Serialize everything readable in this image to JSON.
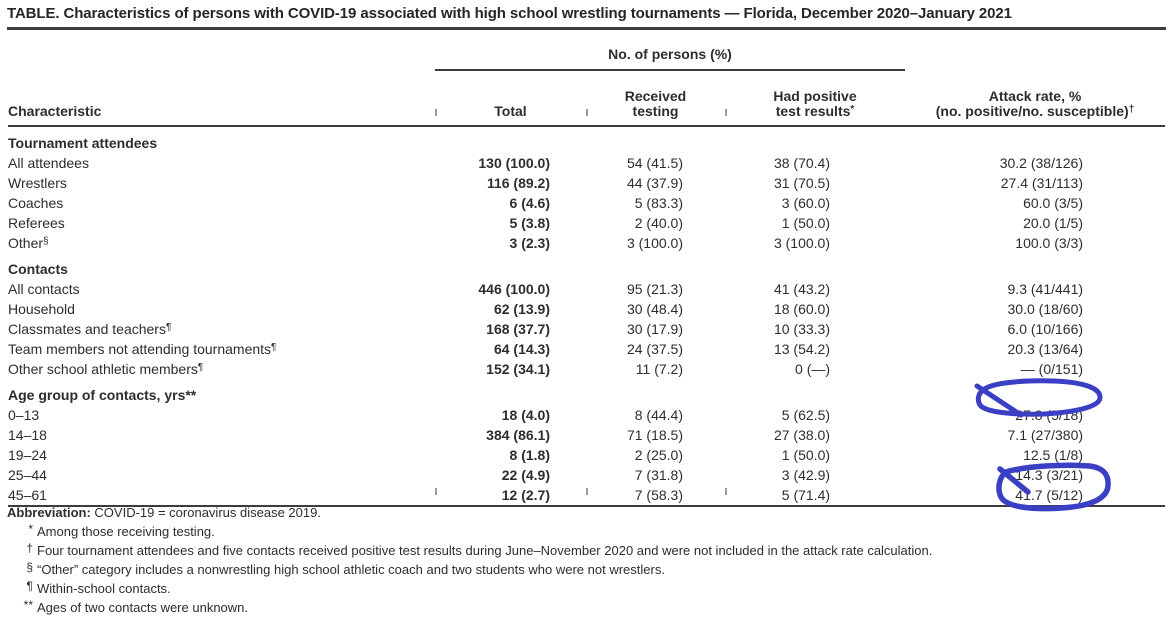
{
  "title": "TABLE. Characteristics of persons with COVID-19 associated with high school wrestling tournaments — Florida, December 2020–January 2021",
  "annotation_color": "#3b3fc4",
  "rule_color": "#3c3c3c",
  "table": {
    "spanner": "No. of persons (%)",
    "columns": {
      "characteristic": "Characteristic",
      "total": "Total",
      "received_line1": "Received",
      "received_line2": "testing",
      "positive_line1": "Had positive",
      "positive_line2": "test results",
      "positive_sup": "*",
      "attack_line1": "Attack rate, %",
      "attack_line2": "(no. positive/no. susceptible)",
      "attack_sup": "†"
    },
    "sections": [
      {
        "header": "Tournament attendees",
        "rows": [
          {
            "label": "All attendees",
            "sup": "",
            "total": "130 (100.0)",
            "tested": "54 (41.5)",
            "positive": "38 (70.4)",
            "attack": "30.2 (38/126)",
            "circled": false
          },
          {
            "label": "Wrestlers",
            "sup": "",
            "total": "116 (89.2)",
            "tested": "44 (37.9)",
            "positive": "31 (70.5)",
            "attack": "27.4 (31/113)",
            "circled": false
          },
          {
            "label": "Coaches",
            "sup": "",
            "total": "6 (4.6)",
            "tested": "5 (83.3)",
            "positive": "3 (60.0)",
            "attack": "60.0 (3/5)",
            "circled": false
          },
          {
            "label": "Referees",
            "sup": "",
            "total": "5 (3.8)",
            "tested": "2 (40.0)",
            "positive": "1 (50.0)",
            "attack": "20.0 (1/5)",
            "circled": false
          },
          {
            "label": "Other",
            "sup": "§",
            "total": "3 (2.3)",
            "tested": "3 (100.0)",
            "positive": "3 (100.0)",
            "attack": "100.0 (3/3)",
            "circled": false
          }
        ]
      },
      {
        "header": "Contacts",
        "rows": [
          {
            "label": "All contacts",
            "sup": "",
            "total": "446 (100.0)",
            "tested": "95 (21.3)",
            "positive": "41 (43.2)",
            "attack": "9.3 (41/441)",
            "circled": false
          },
          {
            "label": "Household",
            "sup": "",
            "total": "62 (13.9)",
            "tested": "30 (48.4)",
            "positive": "18 (60.0)",
            "attack": "30.0 (18/60)",
            "circled": false
          },
          {
            "label": "Classmates and teachers",
            "sup": "¶",
            "total": "168 (37.7)",
            "tested": "30 (17.9)",
            "positive": "10 (33.3)",
            "attack": "6.0 (10/166)",
            "circled": false
          },
          {
            "label": "Team members not attending tournaments",
            "sup": "¶",
            "total": "64 (14.3)",
            "tested": "24 (37.5)",
            "positive": "13 (54.2)",
            "attack": "20.3 (13/64)",
            "circled": false
          },
          {
            "label": "Other school athletic members",
            "sup": "¶",
            "total": "152 (34.1)",
            "tested": "11 (7.2)",
            "positive": "0 (—)",
            "attack": "— (0/151)",
            "circled": false
          }
        ]
      },
      {
        "header": "Age group of contacts, yrs**",
        "rows": [
          {
            "label": "0–13",
            "sup": "",
            "total": "18 (4.0)",
            "tested": "8 (44.4)",
            "positive": "5 (62.5)",
            "attack": "27.8 (5/18)",
            "circled": true
          },
          {
            "label": "14–18",
            "sup": "",
            "total": "384 (86.1)",
            "tested": "71 (18.5)",
            "positive": "27 (38.0)",
            "attack": "7.1 (27/380)",
            "circled": false
          },
          {
            "label": "19–24",
            "sup": "",
            "total": "8 (1.8)",
            "tested": "2 (25.0)",
            "positive": "1 (50.0)",
            "attack": "12.5 (1/8)",
            "circled": false
          },
          {
            "label": "25–44",
            "sup": "",
            "total": "22 (4.9)",
            "tested": "7 (31.8)",
            "positive": "3 (42.9)",
            "attack": "14.3 (3/21)",
            "circled": false
          },
          {
            "label": "45–61",
            "sup": "",
            "total": "12 (2.7)",
            "tested": "7 (58.3)",
            "positive": "5 (71.4)",
            "attack": "41.7 (5/12)",
            "circled": true
          }
        ]
      }
    ]
  },
  "footnotes": {
    "abbreviation_label": "Abbreviation:",
    "abbreviation_text": " COVID-19 = coronavirus disease 2019.",
    "items": [
      {
        "marker": "*",
        "text": "Among those receiving testing."
      },
      {
        "marker": "†",
        "text": "Four tournament attendees and five contacts received positive test results during June–November 2020 and were not included in the attack rate calculation."
      },
      {
        "marker": "§",
        "text": "“Other” category includes a nonwrestling high school athletic coach and two students who were not wrestlers."
      },
      {
        "marker": "¶",
        "text": "Within-school contacts."
      },
      {
        "marker": "**",
        "text": "Ages of two contacts were unknown."
      }
    ]
  },
  "annotations": [
    {
      "type": "hand-drawn-circle",
      "color": "#3b3fc4",
      "around_value": "27.8 (5/18)",
      "row": "0–13"
    },
    {
      "type": "hand-drawn-circle",
      "color": "#3b3fc4",
      "around_value": "41.7 (5/12)",
      "row": "45–61"
    }
  ]
}
